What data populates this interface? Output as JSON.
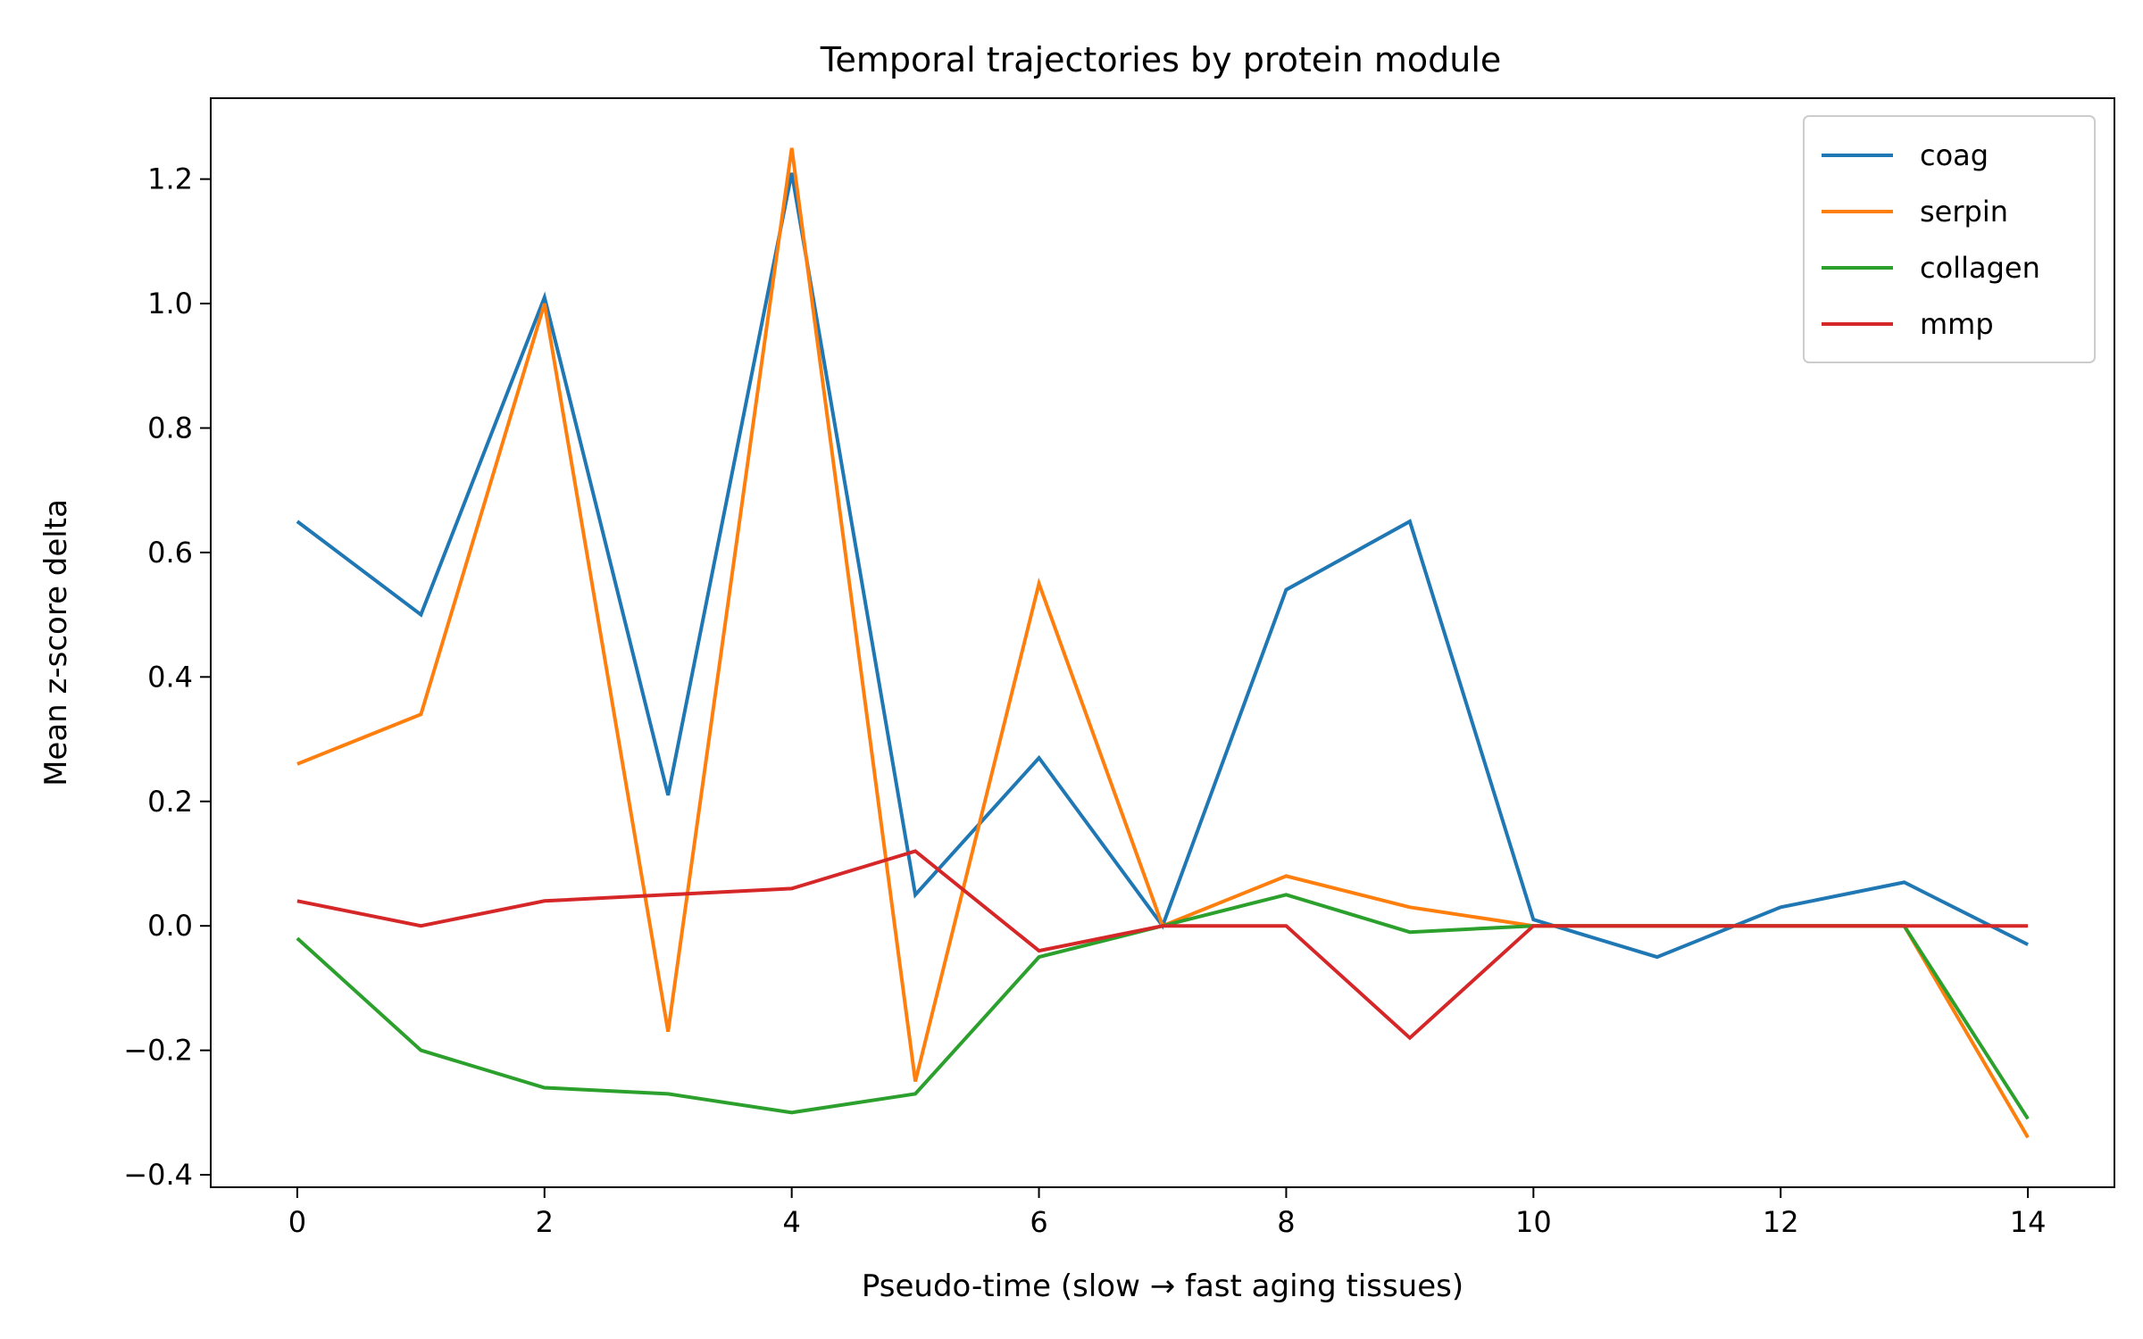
{
  "chart_data": {
    "type": "line",
    "title": "Temporal trajectories by protein module",
    "xlabel": "Pseudo-time (slow → fast aging tissues)",
    "ylabel": "Mean z-score delta",
    "xlim": [
      -0.7,
      14.7
    ],
    "ylim": [
      -0.42,
      1.33
    ],
    "xticks": [
      0,
      2,
      4,
      6,
      8,
      10,
      12,
      14
    ],
    "xtick_labels": [
      "0",
      "2",
      "4",
      "6",
      "8",
      "10",
      "12",
      "14"
    ],
    "yticks": [
      -0.4,
      -0.2,
      0.0,
      0.2,
      0.4,
      0.6,
      0.8,
      1.0,
      1.2
    ],
    "ytick_labels": [
      "−0.4",
      "−0.2",
      "0.0",
      "0.2",
      "0.4",
      "0.6",
      "0.8",
      "1.0",
      "1.2"
    ],
    "grid": false,
    "legend_position": "top-right",
    "x": [
      0,
      1,
      2,
      3,
      4,
      5,
      6,
      7,
      8,
      9,
      10,
      11,
      12,
      13,
      14
    ],
    "series": [
      {
        "name": "coag",
        "color": "#1f77b4",
        "values": [
          0.65,
          0.5,
          1.01,
          0.21,
          1.21,
          0.05,
          0.27,
          0.0,
          0.54,
          0.65,
          0.01,
          -0.05,
          0.03,
          0.07,
          -0.03
        ]
      },
      {
        "name": "serpin",
        "color": "#ff7f0e",
        "values": [
          0.26,
          0.34,
          1.0,
          -0.17,
          1.25,
          -0.25,
          0.55,
          0.0,
          0.08,
          0.03,
          0.0,
          0.0,
          0.0,
          0.0,
          -0.34
        ]
      },
      {
        "name": "collagen",
        "color": "#2ca02c",
        "values": [
          -0.02,
          -0.2,
          -0.26,
          -0.27,
          -0.3,
          -0.27,
          -0.05,
          0.0,
          0.05,
          -0.01,
          0.0,
          0.0,
          0.0,
          0.0,
          -0.31
        ]
      },
      {
        "name": "mmp",
        "color": "#d62728",
        "values": [
          0.04,
          0.0,
          0.04,
          0.05,
          0.06,
          0.12,
          -0.04,
          0.0,
          0.0,
          -0.18,
          0.0,
          0.0,
          0.0,
          0.0,
          0.0
        ]
      }
    ]
  }
}
